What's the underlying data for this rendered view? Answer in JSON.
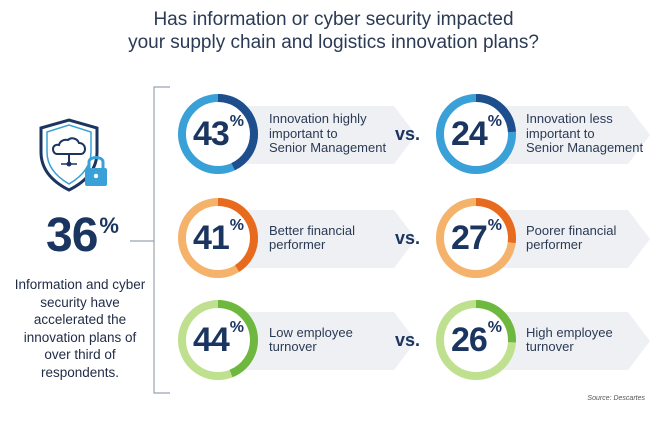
{
  "title": {
    "line1": "Has information or cyber security impacted",
    "line2": "your supply chain and logistics innovation plans?"
  },
  "left": {
    "icon": "cloud-shield-lock-icon",
    "stat_value": "36",
    "stat_unit": "%",
    "description": "Information and cyber security have accelerated the innovation plans of over third of respondents."
  },
  "vs_label": "vs.",
  "rows": [
    {
      "color": "#1f4e8c",
      "light_color": "#3aa0d8",
      "left": {
        "value": "43",
        "unit": "%",
        "fraction": 0.43,
        "label_lines": [
          "Innovation highly",
          "important to",
          "Senior Management"
        ]
      },
      "right": {
        "value": "24",
        "unit": "%",
        "fraction": 0.24,
        "label_lines": [
          "Innovation less",
          "important to",
          "Senior Management"
        ]
      }
    },
    {
      "color": "#e86a1f",
      "light_color": "#f5b26b",
      "left": {
        "value": "41",
        "unit": "%",
        "fraction": 0.41,
        "label_lines": [
          "Better financial",
          "performer"
        ]
      },
      "right": {
        "value": "27",
        "unit": "%",
        "fraction": 0.27,
        "label_lines": [
          "Poorer financial",
          "performer"
        ]
      }
    },
    {
      "color": "#6fb83f",
      "light_color": "#bfe08e",
      "left": {
        "value": "44",
        "unit": "%",
        "fraction": 0.44,
        "label_lines": [
          "Low employee",
          "turnover"
        ]
      },
      "right": {
        "value": "26",
        "unit": "%",
        "fraction": 0.26,
        "label_lines": [
          "High employee",
          "turnover"
        ]
      }
    }
  ],
  "source": "Source: Descartes"
}
